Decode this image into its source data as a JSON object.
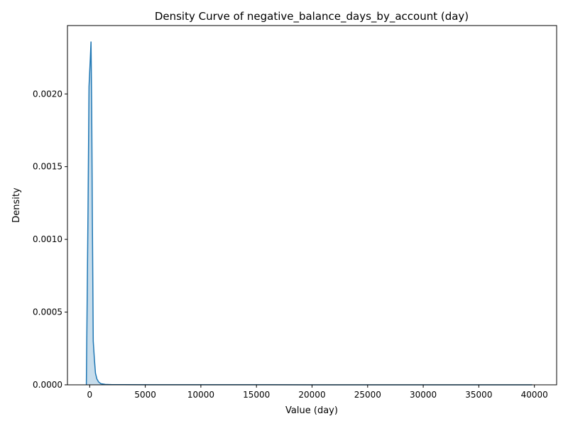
{
  "chart_data": {
    "type": "area",
    "title": "Density Curve of negative_balance_days_by_account (day)",
    "xlabel": "Value (day)",
    "ylabel": "Density",
    "xlim": [
      -2000,
      42000
    ],
    "ylim": [
      0,
      0.00247
    ],
    "xticks": [
      0,
      5000,
      10000,
      15000,
      20000,
      25000,
      30000,
      35000,
      40000
    ],
    "xtick_labels": [
      "0",
      "5000",
      "10000",
      "15000",
      "20000",
      "25000",
      "30000",
      "35000",
      "40000"
    ],
    "yticks": [
      0,
      0.0005,
      0.001,
      0.0015,
      0.002
    ],
    "ytick_labels": [
      "0.0000",
      "0.0005",
      "0.0010",
      "0.0015",
      "0.0020"
    ],
    "grid": false,
    "line_color": "#1f77b4",
    "fill_color": "#1f77b4",
    "fill_alpha": 0.25,
    "series": [
      {
        "x": [
          -300,
          -150,
          -60,
          0,
          60,
          120,
          180,
          240,
          320,
          420,
          520,
          650,
          800,
          1000,
          1400,
          2000,
          3000,
          5000,
          10000,
          20000,
          30000,
          39800
        ],
        "y": [
          0.0,
          0.0012,
          0.00205,
          0.00215,
          0.00225,
          0.00236,
          0.0019,
          0.00115,
          0.0003,
          0.00018,
          8e-05,
          4e-05,
          2e-05,
          8e-06,
          3e-06,
          1.5e-06,
          1e-06,
          6e-07,
          4e-07,
          3e-07,
          2e-07,
          2e-07
        ]
      }
    ]
  }
}
